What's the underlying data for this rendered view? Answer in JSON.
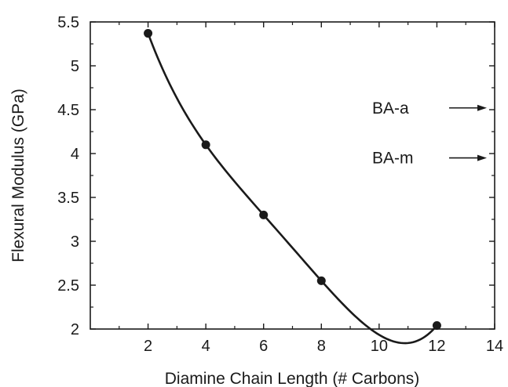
{
  "chart_data": {
    "type": "scatter",
    "title": "",
    "xlabel": "Diamine Chain Length (# Carbons)",
    "ylabel": "Flexural Modulus (GPa)",
    "xlim": [
      0,
      14
    ],
    "ylim": [
      2,
      5.5
    ],
    "x_ticks": [
      2,
      4,
      6,
      8,
      10,
      12,
      14
    ],
    "y_ticks": [
      2,
      2.5,
      3,
      3.5,
      4,
      4.5,
      5,
      5.5
    ],
    "grid": false,
    "legend": "none",
    "series": [
      {
        "x": [
          2,
          4,
          6,
          8,
          12
        ],
        "y": [
          5.37,
          4.1,
          3.3,
          2.55,
          2.04
        ],
        "marker": "filled-circle",
        "fit": "smooth-curve"
      }
    ],
    "annotations": [
      {
        "text": "BA-a",
        "y": 4.52,
        "arrow": "right"
      },
      {
        "text": "BA-m",
        "y": 3.95,
        "arrow": "right"
      }
    ],
    "colors": {
      "ink": "#1a1a1a",
      "background": "#ffffff"
    }
  }
}
